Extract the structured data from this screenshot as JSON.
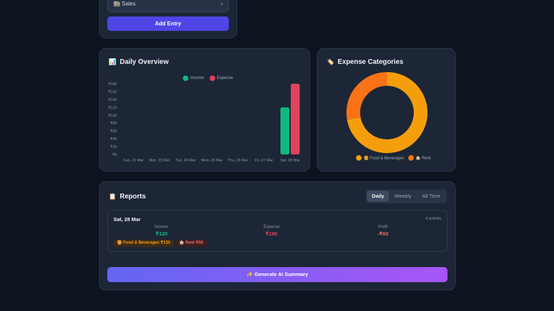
{
  "form": {
    "category_value": "🏬 Sales",
    "add_label": "Add Entry"
  },
  "overview": {
    "title": "Daily Overview",
    "icon": "📊",
    "legend": [
      "Income",
      "Expense"
    ]
  },
  "categories": {
    "title": "Expense Categories",
    "icon": "🏷️",
    "legend": [
      "🍔 Food & Beverages",
      "🏠 Rent"
    ]
  },
  "chart_data": [
    {
      "type": "bar",
      "categories": [
        "Sun, 22 Mar",
        "Mon, 23 Mar",
        "Tue, 24 Mar",
        "Wed, 25 Mar",
        "Thu, 26 Mar",
        "Fri, 27 Mar",
        "Sat, 28 Mar"
      ],
      "series": [
        {
          "name": "Income",
          "values": [
            0,
            0,
            0,
            0,
            0,
            0,
            120
          ],
          "color": "#10b981"
        },
        {
          "name": "Expense",
          "values": [
            0,
            0,
            0,
            0,
            0,
            0,
            180
          ],
          "color": "#e0435c"
        }
      ],
      "yticks": [
        "₹0",
        "₹20",
        "₹40",
        "₹60",
        "₹80",
        "₹100",
        "₹120",
        "₹140",
        "₹160",
        "₹180"
      ],
      "ylim": [
        0,
        180
      ],
      "legend_position": "top"
    },
    {
      "type": "pie",
      "variant": "doughnut",
      "labels": [
        "🍔 Food & Beverages",
        "🏠 Rent"
      ],
      "values": [
        130,
        50
      ],
      "colors": [
        "#f59e0b",
        "#f97316"
      ],
      "legend_position": "bottom"
    }
  ],
  "reports": {
    "title": "Reports",
    "icon": "📋",
    "tabs": [
      "Daily",
      "Weekly",
      "All Time"
    ],
    "day": {
      "date": "Sat, 28 Mar",
      "entries": "4 entries",
      "income_label": "Income",
      "income_value": "₹120",
      "expense_label": "Expense",
      "expense_value": "₹180",
      "profit_label": "Profit",
      "profit_value": "-₹60",
      "chips": [
        "🍔 Food & Beverages ₹130",
        "🏠 Rent ₹50"
      ]
    },
    "ai_button": "✨  Generate AI Summary"
  },
  "colors": {
    "income": "#10b981",
    "expense": "#e0435c",
    "accent": "#4f46e5",
    "loss": "#f07061"
  }
}
